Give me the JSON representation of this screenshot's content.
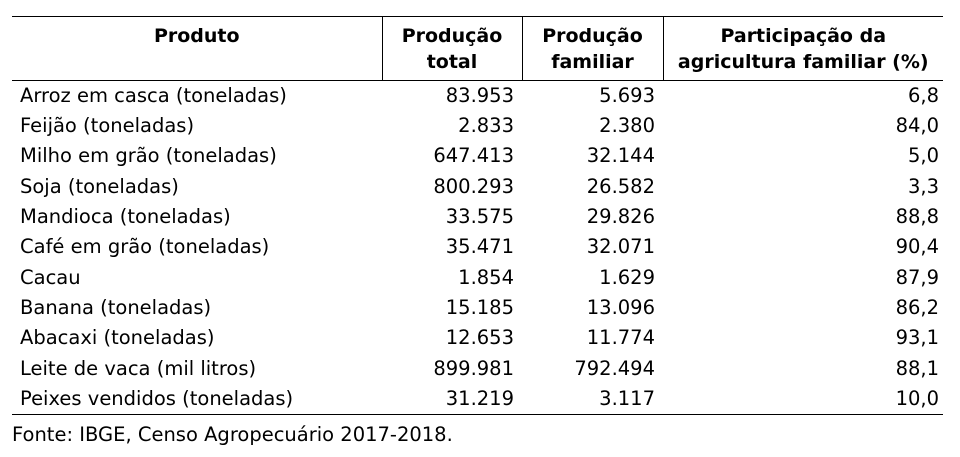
{
  "table": {
    "headers": {
      "produto": "Produto",
      "producao_total_l1": "Produção",
      "producao_total_l2": "total",
      "producao_familiar_l1": "Produção",
      "producao_familiar_l2": "familiar",
      "participacao_l1": "Participação da",
      "participacao_l2": "agricultura familiar (%)"
    },
    "rows": [
      {
        "produto": "Arroz em casca (toneladas)",
        "total": "83.953",
        "familiar": "5.693",
        "participacao": "6,8"
      },
      {
        "produto": "Feijão (toneladas)",
        "total": "2.833",
        "familiar": "2.380",
        "participacao": "84,0"
      },
      {
        "produto": "Milho em grão (toneladas)",
        "total": "647.413",
        "familiar": "32.144",
        "participacao": "5,0"
      },
      {
        "produto": "Soja (toneladas)",
        "total": "800.293",
        "familiar": "26.582",
        "participacao": "3,3"
      },
      {
        "produto": "Mandioca (toneladas)",
        "total": "33.575",
        "familiar": "29.826",
        "participacao": "88,8"
      },
      {
        "produto": "Café em grão (toneladas)",
        "total": "35.471",
        "familiar": "32.071",
        "participacao": "90,4"
      },
      {
        "produto": "Cacau",
        "total": "1.854",
        "familiar": "1.629",
        "participacao": "87,9"
      },
      {
        "produto": "Banana (toneladas)",
        "total": "15.185",
        "familiar": "13.096",
        "participacao": "86,2"
      },
      {
        "produto": "Abacaxi (toneladas)",
        "total": "12.653",
        "familiar": "11.774",
        "participacao": "93,1"
      },
      {
        "produto": "Leite de vaca (mil litros)",
        "total": "899.981",
        "familiar": "792.494",
        "participacao": "88,1"
      },
      {
        "produto": "Peixes vendidos (toneladas)",
        "total": "31.219",
        "familiar": "3.117",
        "participacao": "10,0"
      }
    ]
  },
  "source": "Fonte: IBGE, Censo Agropecuário 2017-2018."
}
